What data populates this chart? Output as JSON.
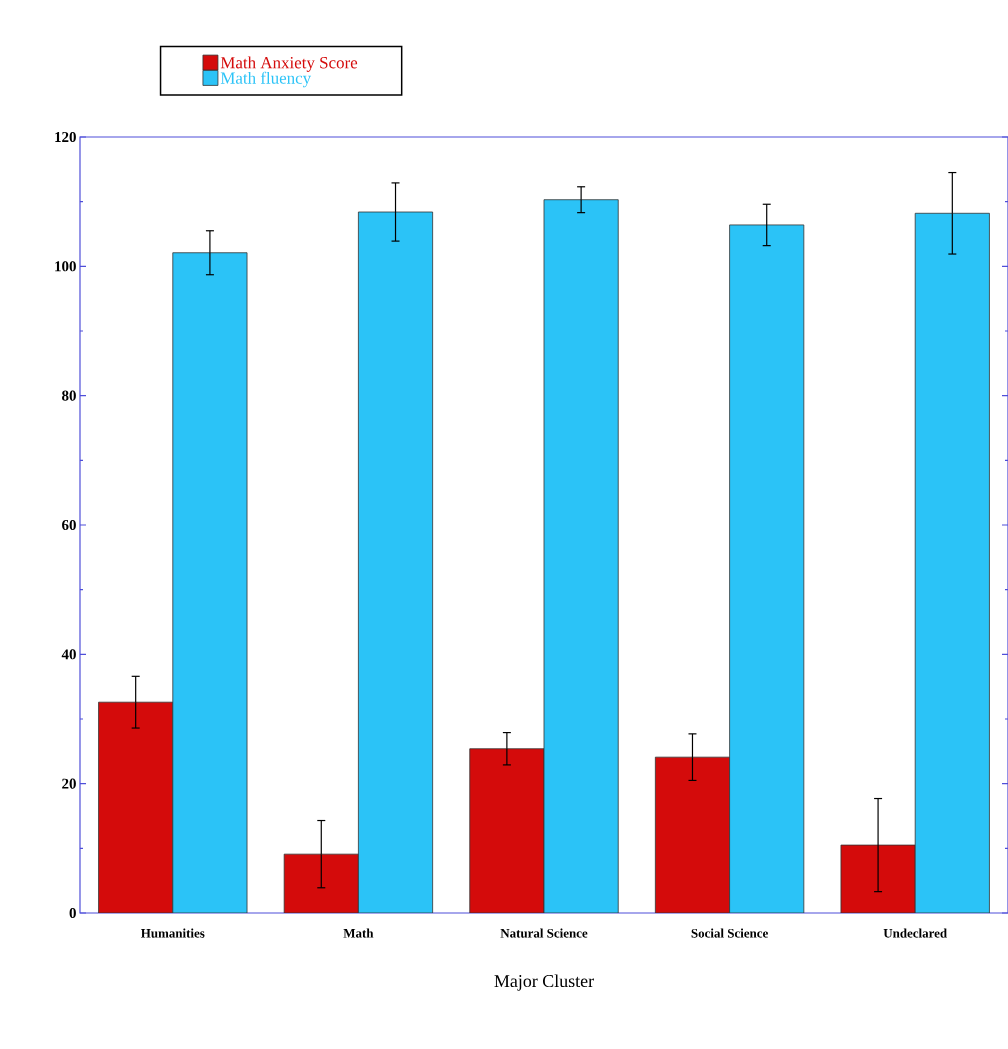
{
  "chart_data": {
    "type": "bar",
    "xlabel": "Major Cluster",
    "categories": [
      "Humanities",
      "Math",
      "Natural Science",
      "Social Science",
      "Undeclared"
    ],
    "series": [
      {
        "name": "Math Anxiety Score",
        "color": "#d40b0b",
        "values": [
          32.6,
          9.1,
          25.4,
          24.1,
          10.5
        ],
        "errors": [
          4.0,
          5.2,
          2.5,
          3.6,
          7.2
        ]
      },
      {
        "name": "Math fluency",
        "color": "#2bc3f7",
        "values": [
          102.1,
          108.4,
          110.3,
          106.4,
          108.2
        ],
        "errors": [
          3.4,
          4.5,
          2.0,
          3.2,
          6.3
        ]
      }
    ],
    "ylim": [
      0,
      120
    ],
    "yticks": [
      0,
      20,
      40,
      60,
      80,
      100,
      120
    ],
    "grid": false,
    "legend": "top left"
  }
}
